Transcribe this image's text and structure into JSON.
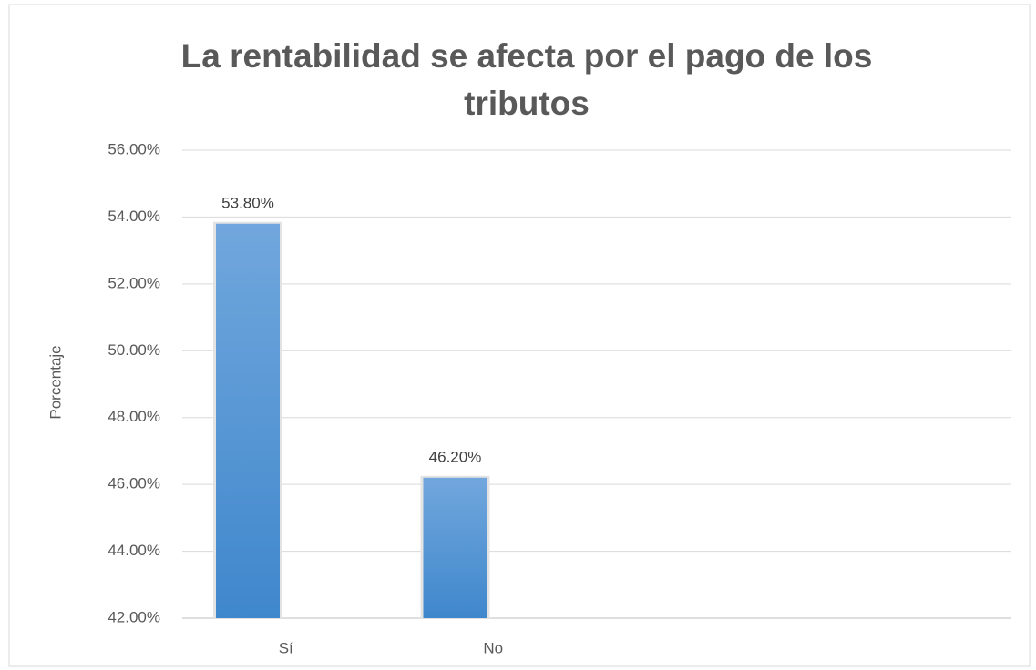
{
  "chart_data": {
    "type": "bar",
    "title": "La rentabilidad se afecta por el pago de los tributos",
    "y_label": "Porcentaje",
    "categories": [
      "Sí",
      "No",
      null,
      null
    ],
    "values": [
      53.8,
      46.2,
      null,
      null
    ],
    "value_labels": [
      "53.80%",
      "46.20%",
      null,
      null
    ],
    "color": "#5b9bd5",
    "ylim": [
      42,
      56
    ],
    "yticks": [
      {
        "value": 42,
        "label": "42.00%"
      },
      {
        "value": 44,
        "label": "44.00%"
      },
      {
        "value": 46,
        "label": "46.00%"
      },
      {
        "value": 48,
        "label": "48.00%"
      },
      {
        "value": 50,
        "label": "50.00%"
      },
      {
        "value": 52,
        "label": "52.00%"
      },
      {
        "value": 54,
        "label": "54.00%"
      },
      {
        "value": 56,
        "label": "56.00%"
      }
    ],
    "grid": true
  }
}
